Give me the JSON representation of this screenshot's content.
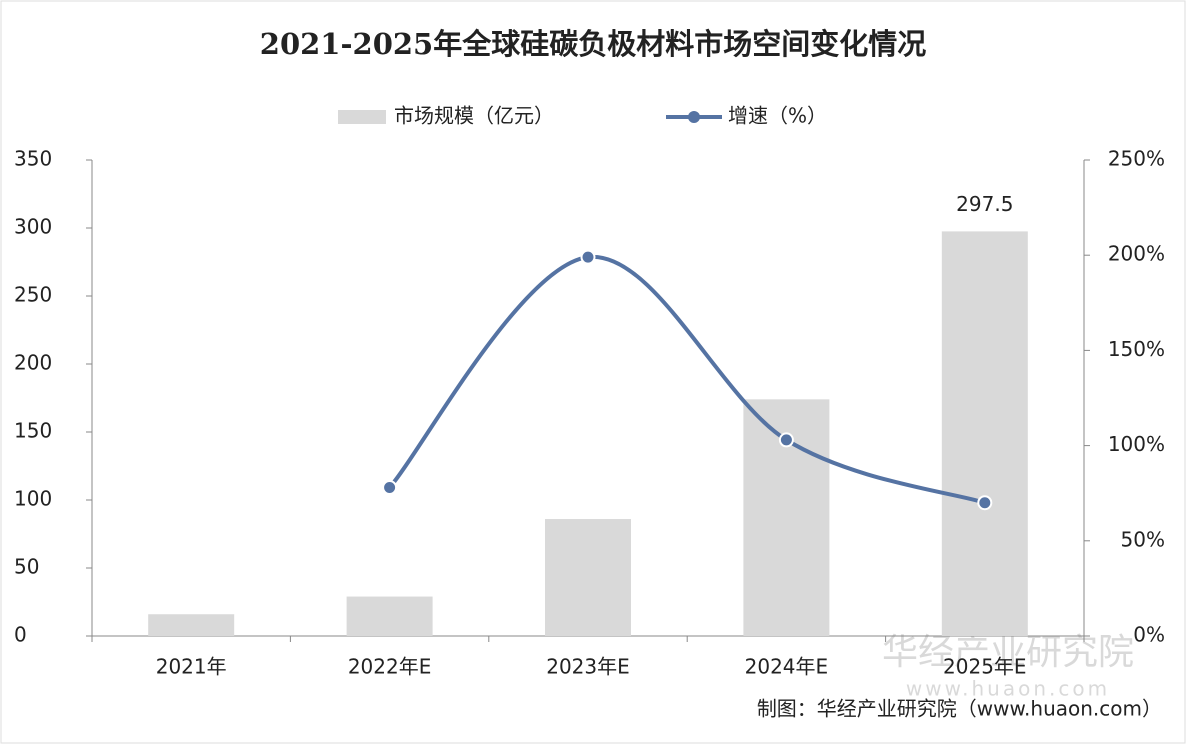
{
  "chart_data": {
    "type": "combo",
    "title": "2021-2025年全球硅碳负极材料市场空间变化情况",
    "categories": [
      "2021年",
      "2022年E",
      "2023年E",
      "2024年E",
      "2025年E"
    ],
    "series": [
      {
        "name": "市场规模（亿元）",
        "type": "bar",
        "color": "#d9d9d9",
        "values": [
          16,
          29,
          86,
          174,
          297.5
        ]
      },
      {
        "name": "增速（%）",
        "type": "line",
        "axis": "y2",
        "color": "#5573a3",
        "values": [
          null,
          78,
          199,
          103,
          70
        ]
      }
    ],
    "data_label_index": 4,
    "ylim": [
      0,
      350
    ],
    "yticks": [
      0,
      50,
      100,
      150,
      200,
      250,
      300,
      350
    ],
    "y2lim": [
      0,
      250
    ],
    "y2ticks": [
      {
        "value": 0,
        "label": "0%"
      },
      {
        "value": 50,
        "label": "50%"
      },
      {
        "value": 100,
        "label": "100%"
      },
      {
        "value": 150,
        "label": "150%"
      },
      {
        "value": 200,
        "label": "200%"
      },
      {
        "value": 250,
        "label": "250%"
      }
    ],
    "source": "制图：华经产业研究院（www.huaon.com）",
    "watermark": [
      "华经产业研究院",
      "www.huaon.com"
    ]
  }
}
